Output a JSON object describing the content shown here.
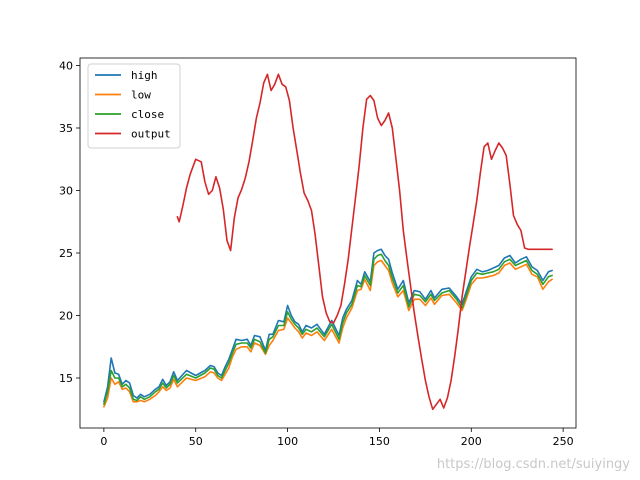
{
  "chart_data": {
    "type": "line",
    "title": "",
    "xlabel": "",
    "ylabel": "",
    "xlim": [
      -13,
      257
    ],
    "ylim": [
      11,
      40.6
    ],
    "xticks": [
      0,
      50,
      100,
      150,
      200,
      250
    ],
    "yticks": [
      15,
      20,
      25,
      30,
      35,
      40
    ],
    "grid": false,
    "legend_position": "top-left",
    "series": [
      {
        "name": "high",
        "color": "#1f77b4",
        "x": [
          0,
          2,
          4,
          6,
          8,
          10,
          12,
          14,
          16,
          18,
          20,
          22,
          25,
          28,
          30,
          32,
          34,
          36,
          38,
          40,
          45,
          50,
          55,
          58,
          60,
          62,
          64,
          66,
          68,
          70,
          72,
          75,
          78,
          80,
          82,
          85,
          88,
          90,
          92,
          95,
          98,
          100,
          102,
          104,
          106,
          108,
          110,
          113,
          116,
          120,
          124,
          128,
          130,
          132,
          135,
          138,
          140,
          142,
          145,
          147,
          149,
          151,
          153,
          155,
          157,
          160,
          163,
          166,
          169,
          172,
          175,
          178,
          180,
          184,
          188,
          192,
          195,
          197,
          200,
          203,
          206,
          209,
          212,
          215,
          218,
          221,
          224,
          227,
          230,
          233,
          236,
          239,
          242,
          244
        ],
        "y": [
          13.1,
          14.3,
          16.6,
          15.4,
          15.3,
          14.5,
          14.8,
          14.6,
          13.6,
          13.4,
          13.7,
          13.5,
          13.7,
          14.1,
          14.3,
          14.9,
          14.4,
          14.7,
          15.5,
          14.8,
          15.6,
          15.2,
          15.6,
          16.0,
          15.9,
          15.4,
          15.2,
          15.9,
          16.5,
          17.3,
          18.1,
          18.0,
          18.1,
          17.6,
          18.4,
          18.3,
          17.2,
          18.5,
          18.5,
          19.6,
          19.5,
          20.8,
          20.0,
          19.5,
          19.3,
          18.7,
          19.2,
          19.0,
          19.3,
          18.5,
          19.6,
          18.4,
          19.8,
          20.5,
          21.2,
          22.8,
          22.5,
          23.5,
          22.7,
          25.0,
          25.2,
          25.3,
          24.8,
          24.5,
          23.4,
          22.1,
          22.8,
          21.0,
          22.0,
          21.9,
          21.3,
          22.0,
          21.4,
          22.1,
          22.2,
          21.5,
          20.9,
          21.8,
          23.1,
          23.7,
          23.5,
          23.6,
          23.8,
          24.0,
          24.6,
          24.8,
          24.2,
          24.5,
          24.7,
          23.9,
          23.6,
          22.8,
          23.5,
          23.6
        ]
      },
      {
        "name": "low",
        "color": "#ff7f0e",
        "x": [
          0,
          2,
          4,
          6,
          8,
          10,
          12,
          14,
          16,
          18,
          20,
          22,
          25,
          28,
          30,
          32,
          34,
          36,
          38,
          40,
          45,
          50,
          55,
          58,
          60,
          62,
          64,
          66,
          68,
          70,
          72,
          75,
          78,
          80,
          82,
          85,
          88,
          90,
          92,
          95,
          98,
          100,
          102,
          104,
          106,
          108,
          110,
          113,
          116,
          120,
          124,
          128,
          130,
          132,
          135,
          138,
          140,
          142,
          145,
          147,
          149,
          151,
          153,
          155,
          157,
          160,
          163,
          166,
          169,
          172,
          175,
          178,
          180,
          184,
          188,
          192,
          195,
          197,
          200,
          203,
          206,
          209,
          212,
          215,
          218,
          221,
          224,
          227,
          230,
          233,
          236,
          239,
          242,
          244
        ],
        "y": [
          12.7,
          13.4,
          15.0,
          14.5,
          14.7,
          14.1,
          14.2,
          13.9,
          13.1,
          13.1,
          13.2,
          13.1,
          13.3,
          13.6,
          13.9,
          14.3,
          14.0,
          14.2,
          14.9,
          14.3,
          15.0,
          14.8,
          15.1,
          15.5,
          15.4,
          15.0,
          14.8,
          15.3,
          15.8,
          16.7,
          17.3,
          17.5,
          17.5,
          17.1,
          17.8,
          17.6,
          16.9,
          17.6,
          18.0,
          18.8,
          18.9,
          19.8,
          19.4,
          19.0,
          18.7,
          18.2,
          18.6,
          18.4,
          18.7,
          18.0,
          18.9,
          17.8,
          19.0,
          19.8,
          20.6,
          22.0,
          22.1,
          22.9,
          22.0,
          24.0,
          24.3,
          24.4,
          24.0,
          23.6,
          22.6,
          21.5,
          22.0,
          20.4,
          21.3,
          21.3,
          20.8,
          21.4,
          20.9,
          21.6,
          21.7,
          21.0,
          20.4,
          21.2,
          22.5,
          23.0,
          23.0,
          23.1,
          23.2,
          23.4,
          24.0,
          24.2,
          23.7,
          23.9,
          24.1,
          23.3,
          23.1,
          22.1,
          22.7,
          22.9
        ]
      },
      {
        "name": "close",
        "color": "#2ca02c",
        "x": [
          0,
          2,
          4,
          6,
          8,
          10,
          12,
          14,
          16,
          18,
          20,
          22,
          25,
          28,
          30,
          32,
          34,
          36,
          38,
          40,
          45,
          50,
          55,
          58,
          60,
          62,
          64,
          66,
          68,
          70,
          72,
          75,
          78,
          80,
          82,
          85,
          88,
          90,
          92,
          95,
          98,
          100,
          102,
          104,
          106,
          108,
          110,
          113,
          116,
          120,
          124,
          128,
          130,
          132,
          135,
          138,
          140,
          142,
          145,
          147,
          149,
          151,
          153,
          155,
          157,
          160,
          163,
          166,
          169,
          172,
          175,
          178,
          180,
          184,
          188,
          192,
          195,
          197,
          200,
          203,
          206,
          209,
          212,
          215,
          218,
          221,
          224,
          227,
          230,
          233,
          236,
          239,
          242,
          244
        ],
        "y": [
          12.9,
          13.9,
          15.6,
          15.0,
          15.0,
          14.3,
          14.5,
          14.2,
          13.3,
          13.2,
          13.5,
          13.3,
          13.5,
          13.9,
          14.1,
          14.6,
          14.2,
          14.5,
          15.2,
          14.6,
          15.3,
          15.0,
          15.4,
          15.8,
          15.7,
          15.2,
          15.0,
          15.6,
          16.2,
          17.0,
          17.7,
          17.8,
          17.8,
          17.4,
          18.1,
          17.9,
          17.0,
          18.1,
          18.3,
          19.2,
          19.2,
          20.3,
          19.7,
          19.3,
          19.0,
          18.5,
          18.9,
          18.7,
          19.0,
          18.3,
          19.3,
          18.1,
          19.4,
          20.2,
          20.9,
          22.4,
          22.3,
          23.2,
          22.4,
          24.5,
          24.8,
          24.9,
          24.4,
          24.0,
          23.0,
          21.8,
          22.4,
          20.7,
          21.7,
          21.6,
          21.1,
          21.7,
          21.2,
          21.8,
          22.0,
          21.3,
          20.6,
          21.5,
          22.8,
          23.4,
          23.3,
          23.4,
          23.5,
          23.7,
          24.3,
          24.5,
          24.0,
          24.2,
          24.4,
          23.6,
          23.3,
          22.5,
          23.1,
          23.2
        ]
      },
      {
        "name": "output",
        "color": "#d62728",
        "x": [
          40,
          41,
          43,
          45,
          47,
          50,
          53,
          55,
          57,
          59,
          61,
          63,
          65,
          67,
          69,
          71,
          73,
          75,
          77,
          79,
          81,
          83,
          85,
          87,
          89,
          91,
          93,
          95,
          97,
          99,
          101,
          103,
          105,
          107,
          109,
          111,
          113,
          115,
          117,
          119,
          121,
          123,
          125,
          127,
          129,
          131,
          133,
          135,
          137,
          139,
          141,
          143,
          145,
          147,
          149,
          151,
          153,
          155,
          157,
          159,
          161,
          163,
          165,
          167,
          169,
          171,
          173,
          175,
          177,
          179,
          181,
          183,
          185,
          187,
          189,
          191,
          193,
          195,
          197,
          199,
          201,
          203,
          205,
          207,
          209,
          211,
          213,
          215,
          217,
          219,
          221,
          223,
          225,
          227,
          229,
          231,
          233,
          235,
          237,
          239,
          241,
          243,
          244
        ],
        "y": [
          27.9,
          27.5,
          28.8,
          30.2,
          31.3,
          32.5,
          32.3,
          30.7,
          29.7,
          30.0,
          31.1,
          30.2,
          28.5,
          26.0,
          25.2,
          27.8,
          29.4,
          30.1,
          31.0,
          32.3,
          34.0,
          35.8,
          37.0,
          38.6,
          39.3,
          38.0,
          38.5,
          39.3,
          38.5,
          38.3,
          37.2,
          35.0,
          33.2,
          31.4,
          29.8,
          29.2,
          28.4,
          26.5,
          24.0,
          21.5,
          20.2,
          19.5,
          19.4,
          20.0,
          20.8,
          22.5,
          24.5,
          27.0,
          29.5,
          32.0,
          35.0,
          37.3,
          37.6,
          37.2,
          35.8,
          35.2,
          35.6,
          36.2,
          35.0,
          32.5,
          30.0,
          26.8,
          24.5,
          22.3,
          20.2,
          18.3,
          16.5,
          14.8,
          13.5,
          12.5,
          12.9,
          13.3,
          12.6,
          13.4,
          14.8,
          16.8,
          19.0,
          21.5,
          23.5,
          25.5,
          27.3,
          29.2,
          31.5,
          33.5,
          33.8,
          32.5,
          33.2,
          33.8,
          33.4,
          32.8,
          30.5,
          28.0,
          27.3,
          26.8,
          25.4,
          25.3,
          25.3,
          25.3,
          25.3,
          25.3,
          25.3,
          25.3,
          25.3
        ]
      }
    ]
  },
  "watermark": "https://blog.csdn.net/suiyingy"
}
